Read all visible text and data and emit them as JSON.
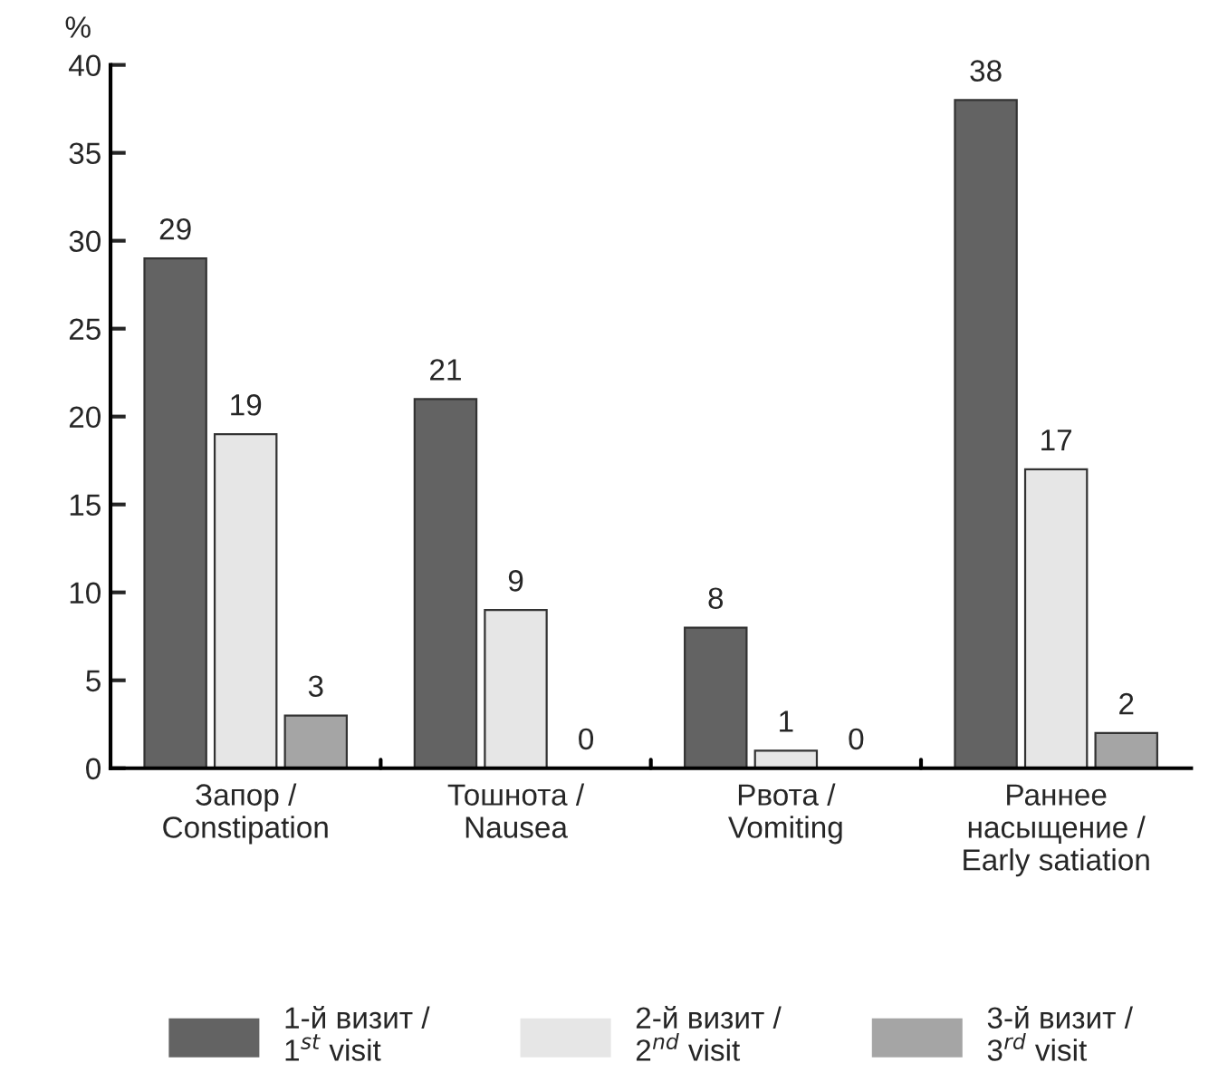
{
  "chart_data": {
    "type": "bar",
    "ylabel": "%",
    "categories": [
      "Запор /\nConstipation",
      "Тошнота /\nNausea",
      "Рвота /\nVomiting",
      "Раннее\nнасыщение /\nEarly satiation"
    ],
    "series": [
      {
        "name": "1-й визит /\n1$^{st}$ visit",
        "color": "#636363",
        "values": [
          29,
          21,
          8,
          38
        ]
      },
      {
        "name": "2-й визит /\n2$^{nd}$ visit",
        "color": "#e6e6e6",
        "values": [
          19,
          9,
          1,
          17
        ]
      },
      {
        "name": "3-й визит /\n3$^{rd}$ visit",
        "color": "#a5a5a5",
        "values": [
          3,
          0,
          0,
          2
        ]
      }
    ],
    "ylim": [
      0,
      40
    ],
    "yticks": [
      0,
      5,
      10,
      15,
      20,
      25,
      30,
      35,
      40
    ],
    "data_labels": true,
    "grid": false,
    "legend": "bottom"
  }
}
